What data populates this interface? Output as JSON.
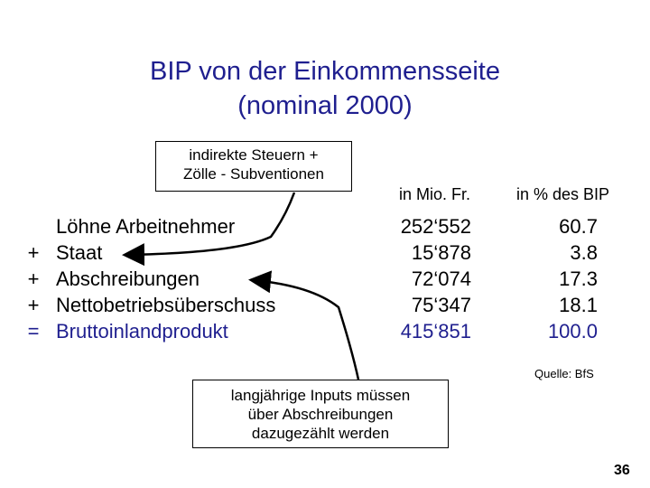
{
  "slide": {
    "title_line1": "BIP von der Einkommensseite",
    "title_line2": "(nominal 2000)",
    "callout_tax": {
      "line1": "indirekte Steuern +",
      "line2": "Zölle - Subventionen"
    },
    "callout_inputs": {
      "line1": "langjährige Inputs müssen",
      "line2": "über Abschreibungen",
      "line3": "dazugezählt werden"
    },
    "columns": {
      "mio": "in Mio. Fr.",
      "pct": "in % des BIP"
    },
    "rows": [
      {
        "symbol": "",
        "label": "Löhne Arbeitnehmer",
        "mio": "252‘552",
        "pct": "60.7"
      },
      {
        "symbol": "+",
        "label": "Staat",
        "mio": "15‘878",
        "pct": "3.8"
      },
      {
        "symbol": "+",
        "label": "Abschreibungen",
        "mio": "72‘074",
        "pct": "17.3"
      },
      {
        "symbol": "+",
        "label": "Nettobetriebsüberschuss",
        "mio": "75‘347",
        "pct": "18.1"
      },
      {
        "symbol": "=",
        "label": "Bruttoinlandprodukt",
        "mio": "415‘851",
        "pct": "100.0"
      }
    ],
    "source": "Quelle: BfS",
    "page_number": "36",
    "colors": {
      "accent": "#1f1f8f",
      "text": "#000000"
    }
  }
}
